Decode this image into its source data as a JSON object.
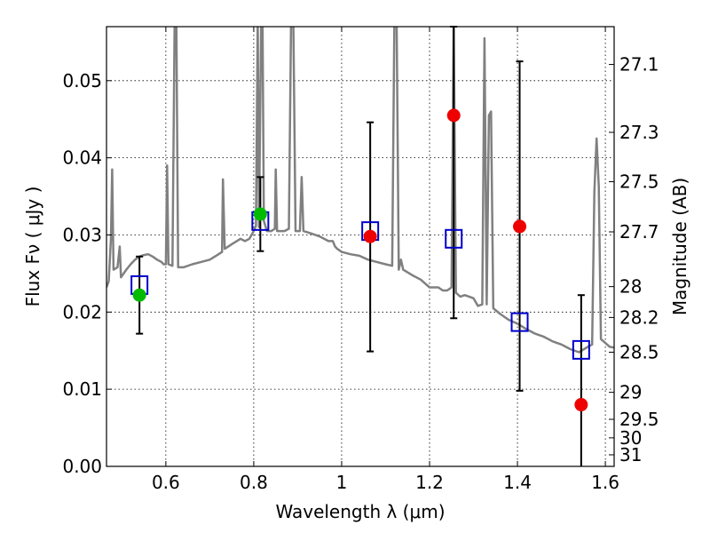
{
  "chart_data": {
    "type": "scatter",
    "title": "",
    "xlabel": "Wavelength  λ (μm)",
    "ylabel": "Flux  Fν  ( μJy )",
    "y2label": "Magnitude (AB)",
    "xlim": [
      0.465,
      1.62
    ],
    "ylim": [
      0.0,
      0.057
    ],
    "grid": true,
    "x_ticks": [
      0.6,
      0.8,
      1.0,
      1.2,
      1.4,
      1.6
    ],
    "x_tick_labels": [
      "0.6",
      "0.8",
      "1",
      "1.2",
      "1.4",
      "1.6"
    ],
    "y_ticks": [
      0.0,
      0.01,
      0.02,
      0.03,
      0.04,
      0.05
    ],
    "y_tick_labels": [
      "0.00",
      "0.01",
      "0.02",
      "0.03",
      "0.04",
      "0.05"
    ],
    "y2_ticks": [
      {
        "label": "27.1",
        "flux": 0.0521
      },
      {
        "label": "27.3",
        "flux": 0.0433
      },
      {
        "label": "27.5",
        "flux": 0.0369
      },
      {
        "label": "27.7",
        "flux": 0.0304
      },
      {
        "label": "28",
        "flux": 0.0233
      },
      {
        "label": "28.2",
        "flux": 0.0193
      },
      {
        "label": "28.5",
        "flux": 0.0148
      },
      {
        "label": "29",
        "flux": 0.0096
      },
      {
        "label": "29.5",
        "flux": 0.0061
      },
      {
        "label": "30",
        "flux": 0.0037
      },
      {
        "label": "31",
        "flux": 0.0015
      }
    ],
    "series": [
      {
        "marker": "square",
        "color": "#0000cc",
        "points": [
          {
            "x": 0.54,
            "y": 0.0235
          },
          {
            "x": 0.815,
            "y": 0.0318
          },
          {
            "x": 1.065,
            "y": 0.0305
          },
          {
            "x": 1.255,
            "y": 0.0295
          },
          {
            "x": 1.405,
            "y": 0.0187
          },
          {
            "x": 1.545,
            "y": 0.0151
          }
        ]
      },
      {
        "marker": "circle",
        "color": "#00bb00",
        "points": [
          {
            "x": 0.54,
            "y": 0.0222
          },
          {
            "x": 0.815,
            "y": 0.0327
          }
        ]
      },
      {
        "marker": "circle",
        "color": "#ee0000",
        "points": [
          {
            "x": 1.065,
            "y": 0.0298
          },
          {
            "x": 1.255,
            "y": 0.0455
          },
          {
            "x": 1.405,
            "y": 0.0311
          },
          {
            "x": 1.545,
            "y": 0.008
          }
        ]
      }
    ],
    "error_bars": [
      {
        "x": 0.54,
        "low": 0.0172,
        "high": 0.0272
      },
      {
        "x": 0.815,
        "low": 0.0279,
        "high": 0.0375
      },
      {
        "x": 1.065,
        "low": 0.0149,
        "high": 0.0446
      },
      {
        "x": 1.255,
        "low": 0.0192,
        "high": 0.057
      },
      {
        "x": 1.405,
        "low": 0.0098,
        "high": 0.0525
      },
      {
        "x": 1.545,
        "low": 0.0,
        "high": 0.0222
      }
    ],
    "sed_model": {
      "color": "#808080",
      "points": [
        [
          0.465,
          0.0232
        ],
        [
          0.47,
          0.024
        ],
        [
          0.475,
          0.0295
        ],
        [
          0.478,
          0.0385
        ],
        [
          0.481,
          0.0255
        ],
        [
          0.49,
          0.0258
        ],
        [
          0.495,
          0.0285
        ],
        [
          0.498,
          0.0245
        ],
        [
          0.51,
          0.0255
        ],
        [
          0.52,
          0.0262
        ],
        [
          0.53,
          0.0268
        ],
        [
          0.54,
          0.0272
        ],
        [
          0.55,
          0.0274
        ],
        [
          0.56,
          0.0275
        ],
        [
          0.57,
          0.0272
        ],
        [
          0.58,
          0.0268
        ],
        [
          0.59,
          0.0265
        ],
        [
          0.595,
          0.0262
        ],
        [
          0.6,
          0.0262
        ],
        [
          0.603,
          0.039
        ],
        [
          0.606,
          0.0262
        ],
        [
          0.615,
          0.026
        ],
        [
          0.62,
          0.058
        ],
        [
          0.624,
          0.058
        ],
        [
          0.628,
          0.0258
        ],
        [
          0.64,
          0.0258
        ],
        [
          0.66,
          0.0262
        ],
        [
          0.68,
          0.0265
        ],
        [
          0.7,
          0.0268
        ],
        [
          0.72,
          0.0275
        ],
        [
          0.728,
          0.0278
        ],
        [
          0.73,
          0.0372
        ],
        [
          0.734,
          0.0282
        ],
        [
          0.75,
          0.0288
        ],
        [
          0.77,
          0.0295
        ],
        [
          0.78,
          0.0292
        ],
        [
          0.79,
          0.0295
        ],
        [
          0.8,
          0.0305
        ],
        [
          0.805,
          0.0312
        ],
        [
          0.809,
          0.058
        ],
        [
          0.812,
          0.031
        ],
        [
          0.817,
          0.058
        ],
        [
          0.82,
          0.058
        ],
        [
          0.823,
          0.0318
        ],
        [
          0.83,
          0.0305
        ],
        [
          0.84,
          0.0305
        ],
        [
          0.848,
          0.0308
        ],
        [
          0.85,
          0.0385
        ],
        [
          0.853,
          0.0305
        ],
        [
          0.86,
          0.0305
        ],
        [
          0.87,
          0.0305
        ],
        [
          0.88,
          0.0308
        ],
        [
          0.885,
          0.058
        ],
        [
          0.89,
          0.058
        ],
        [
          0.895,
          0.0305
        ],
        [
          0.905,
          0.0305
        ],
        [
          0.909,
          0.0375
        ],
        [
          0.913,
          0.0305
        ],
        [
          0.93,
          0.0302
        ],
        [
          0.95,
          0.0298
        ],
        [
          0.97,
          0.0292
        ],
        [
          0.98,
          0.0292
        ],
        [
          0.985,
          0.0285
        ],
        [
          0.99,
          0.0282
        ],
        [
          1.0,
          0.0278
        ],
        [
          1.02,
          0.0275
        ],
        [
          1.04,
          0.0273
        ],
        [
          1.06,
          0.0268
        ],
        [
          1.08,
          0.0265
        ],
        [
          1.1,
          0.0262
        ],
        [
          1.115,
          0.026
        ],
        [
          1.12,
          0.058
        ],
        [
          1.125,
          0.058
        ],
        [
          1.13,
          0.0255
        ],
        [
          1.135,
          0.0268
        ],
        [
          1.14,
          0.0255
        ],
        [
          1.16,
          0.0248
        ],
        [
          1.18,
          0.0242
        ],
        [
          1.2,
          0.0232
        ],
        [
          1.22,
          0.0232
        ],
        [
          1.23,
          0.0228
        ],
        [
          1.24,
          0.0228
        ],
        [
          1.25,
          0.0232
        ],
        [
          1.255,
          0.058
        ],
        [
          1.26,
          0.0225
        ],
        [
          1.27,
          0.022
        ],
        [
          1.28,
          0.0222
        ],
        [
          1.3,
          0.0218
        ],
        [
          1.31,
          0.0208
        ],
        [
          1.32,
          0.021
        ],
        [
          1.325,
          0.0555
        ],
        [
          1.33,
          0.021
        ],
        [
          1.335,
          0.0455
        ],
        [
          1.34,
          0.046
        ],
        [
          1.345,
          0.0205
        ],
        [
          1.36,
          0.0198
        ],
        [
          1.38,
          0.019
        ],
        [
          1.4,
          0.0185
        ],
        [
          1.42,
          0.0178
        ],
        [
          1.44,
          0.0172
        ],
        [
          1.46,
          0.0168
        ],
        [
          1.48,
          0.0162
        ],
        [
          1.5,
          0.0158
        ],
        [
          1.52,
          0.0152
        ],
        [
          1.54,
          0.0148
        ],
        [
          1.56,
          0.0155
        ],
        [
          1.57,
          0.0158
        ],
        [
          1.575,
          0.0355
        ],
        [
          1.58,
          0.0425
        ],
        [
          1.585,
          0.0362
        ],
        [
          1.59,
          0.0165
        ],
        [
          1.6,
          0.016
        ],
        [
          1.61,
          0.0155
        ],
        [
          1.62,
          0.0154
        ]
      ]
    }
  }
}
